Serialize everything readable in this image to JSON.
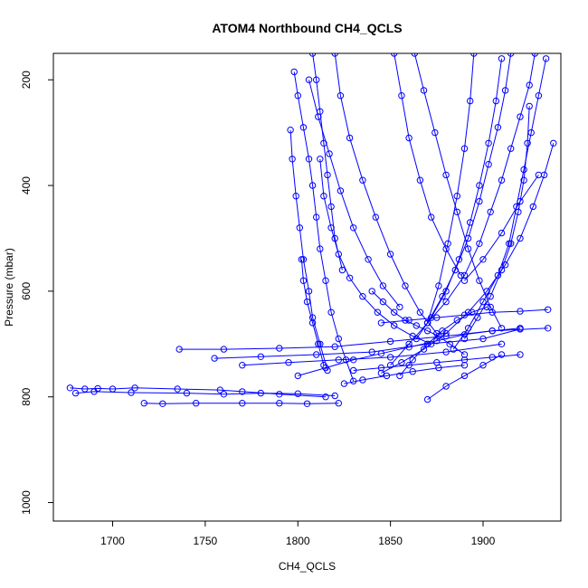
{
  "chart_data": {
    "type": "line",
    "title": "ATOM4 Northbound CH4_QCLS",
    "xlabel": "CH4_QCLS",
    "ylabel": "Pressure (mbar)",
    "xlim": [
      1668,
      1942
    ],
    "ylim": [
      1035,
      150
    ],
    "y_reversed": true,
    "xticks": [
      1700,
      1750,
      1800,
      1850,
      1900
    ],
    "yticks": [
      200,
      400,
      600,
      800,
      1000
    ],
    "grid": false,
    "legend": "none",
    "color": "#0000ff",
    "marker": "open-circle",
    "series": [
      {
        "x": [
          1677,
          1685,
          1692,
          1700,
          1712,
          1735,
          1758,
          1770,
          1790,
          1815
        ],
        "y": [
          783,
          785,
          784,
          785,
          783,
          785,
          787,
          790,
          795,
          800
        ]
      },
      {
        "x": [
          1680,
          1690,
          1710,
          1740,
          1760,
          1780,
          1800,
          1820
        ],
        "y": [
          793,
          790,
          792,
          793,
          795,
          793,
          794,
          798
        ]
      },
      {
        "x": [
          1717,
          1727,
          1745,
          1770,
          1790,
          1805,
          1822
        ],
        "y": [
          812,
          813,
          812,
          812,
          812,
          813,
          812
        ]
      },
      {
        "x": [
          1736,
          1760,
          1790,
          1820,
          1850,
          1880,
          1905,
          1935
        ],
        "y": [
          710,
          710,
          708,
          705,
          695,
          685,
          675,
          670
        ]
      },
      {
        "x": [
          1755,
          1780,
          1810,
          1840,
          1870,
          1900,
          1920
        ],
        "y": [
          727,
          724,
          720,
          715,
          700,
          690,
          672
        ]
      },
      {
        "x": [
          1770,
          1795,
          1822,
          1850,
          1880,
          1910
        ],
        "y": [
          740,
          735,
          730,
          725,
          715,
          700
        ]
      },
      {
        "x": [
          1798,
          1800,
          1803,
          1806,
          1808,
          1810,
          1812,
          1815,
          1818,
          1822,
          1826,
          1830
        ],
        "y": [
          185,
          230,
          290,
          350,
          400,
          460,
          520,
          580,
          640,
          690,
          730,
          770
        ]
      },
      {
        "x": [
          1796,
          1797,
          1799,
          1801,
          1803,
          1806,
          1808,
          1812,
          1816
        ],
        "y": [
          295,
          350,
          420,
          480,
          540,
          600,
          650,
          700,
          750
        ]
      },
      {
        "x": [
          1808,
          1810,
          1812,
          1814,
          1816,
          1818,
          1820,
          1824
        ],
        "y": [
          150,
          200,
          260,
          320,
          380,
          440,
          500,
          560
        ]
      },
      {
        "x": [
          1820,
          1823,
          1828,
          1835,
          1842,
          1850,
          1858,
          1866,
          1875
        ],
        "y": [
          150,
          230,
          310,
          390,
          460,
          530,
          590,
          640,
          680
        ]
      },
      {
        "x": [
          1863,
          1868,
          1874,
          1880,
          1886,
          1892,
          1898,
          1904,
          1910
        ],
        "y": [
          150,
          220,
          300,
          380,
          450,
          520,
          580,
          630,
          670
        ]
      },
      {
        "x": [
          1928,
          1925,
          1920,
          1915,
          1910,
          1904,
          1898,
          1890,
          1880,
          1870,
          1860,
          1850
        ],
        "y": [
          150,
          210,
          270,
          330,
          390,
          450,
          510,
          570,
          620,
          660,
          700,
          740
        ]
      },
      {
        "x": [
          1934,
          1930,
          1926,
          1922,
          1918,
          1914,
          1908,
          1900,
          1892,
          1884
        ],
        "y": [
          160,
          230,
          300,
          370,
          440,
          510,
          570,
          620,
          670,
          710
        ]
      },
      {
        "x": [
          1915,
          1912,
          1908,
          1903,
          1898,
          1892,
          1885,
          1878,
          1870
        ],
        "y": [
          150,
          220,
          290,
          360,
          430,
          500,
          560,
          610,
          660
        ]
      },
      {
        "x": [
          1938,
          1933,
          1927,
          1920,
          1912,
          1902,
          1892,
          1880,
          1868,
          1856,
          1845
        ],
        "y": [
          320,
          380,
          440,
          500,
          550,
          600,
          640,
          680,
          710,
          735,
          755
        ]
      },
      {
        "x": [
          1895,
          1893,
          1890,
          1886,
          1881,
          1876,
          1870
        ],
        "y": [
          150,
          240,
          330,
          420,
          510,
          590,
          660
        ]
      },
      {
        "x": [
          1840,
          1846,
          1852,
          1858,
          1864,
          1870,
          1876,
          1882,
          1890
        ],
        "y": [
          600,
          620,
          640,
          655,
          665,
          675,
          685,
          700,
          720
        ]
      },
      {
        "x": [
          1800,
          1815,
          1830,
          1845,
          1860,
          1875,
          1890,
          1905,
          1920
        ],
        "y": [
          760,
          745,
          730,
          718,
          706,
          694,
          682,
          675,
          670
        ]
      },
      {
        "x": [
          1830,
          1845,
          1860,
          1875,
          1890,
          1905,
          1920
        ],
        "y": [
          750,
          745,
          740,
          735,
          730,
          725,
          720
        ]
      },
      {
        "x": [
          1845,
          1860,
          1875,
          1890,
          1905,
          1920,
          1935
        ],
        "y": [
          660,
          655,
          650,
          645,
          640,
          638,
          635
        ]
      },
      {
        "x": [
          1870,
          1880,
          1890,
          1900,
          1910
        ],
        "y": [
          805,
          780,
          760,
          740,
          720
        ]
      },
      {
        "x": [
          1806,
          1811,
          1817,
          1823,
          1830,
          1838,
          1846,
          1855
        ],
        "y": [
          200,
          270,
          340,
          410,
          480,
          540,
          590,
          630
        ]
      },
      {
        "x": [
          1852,
          1856,
          1860,
          1866,
          1872,
          1880,
          1888
        ],
        "y": [
          150,
          230,
          310,
          390,
          460,
          520,
          570
        ]
      },
      {
        "x": [
          1910,
          1907,
          1903,
          1898,
          1893,
          1887,
          1880,
          1872,
          1864
        ],
        "y": [
          160,
          240,
          320,
          400,
          470,
          540,
          600,
          650,
          690
        ]
      },
      {
        "x": [
          1925,
          1924,
          1922,
          1919,
          1915,
          1910,
          1904,
          1897,
          1890
        ],
        "y": [
          250,
          320,
          390,
          450,
          510,
          560,
          610,
          650,
          690
        ]
      },
      {
        "x": [
          1812,
          1814,
          1818,
          1822,
          1828,
          1835,
          1843,
          1852,
          1862,
          1872
        ],
        "y": [
          350,
          420,
          480,
          530,
          575,
          610,
          640,
          665,
          685,
          700
        ]
      },
      {
        "x": [
          1890,
          1900,
          1910,
          1920,
          1930
        ],
        "y": [
          580,
          540,
          490,
          430,
          380
        ]
      },
      {
        "x": [
          1855,
          1862,
          1870,
          1878,
          1886,
          1894,
          1902
        ],
        "y": [
          760,
          730,
          700,
          675,
          655,
          640,
          630
        ]
      },
      {
        "x": [
          1825,
          1835,
          1848,
          1862,
          1876,
          1890
        ],
        "y": [
          775,
          768,
          760,
          752,
          745,
          740
        ]
      },
      {
        "x": [
          1802,
          1803,
          1805,
          1808,
          1811,
          1814
        ],
        "y": [
          540,
          580,
          620,
          660,
          700,
          740
        ]
      }
    ]
  }
}
